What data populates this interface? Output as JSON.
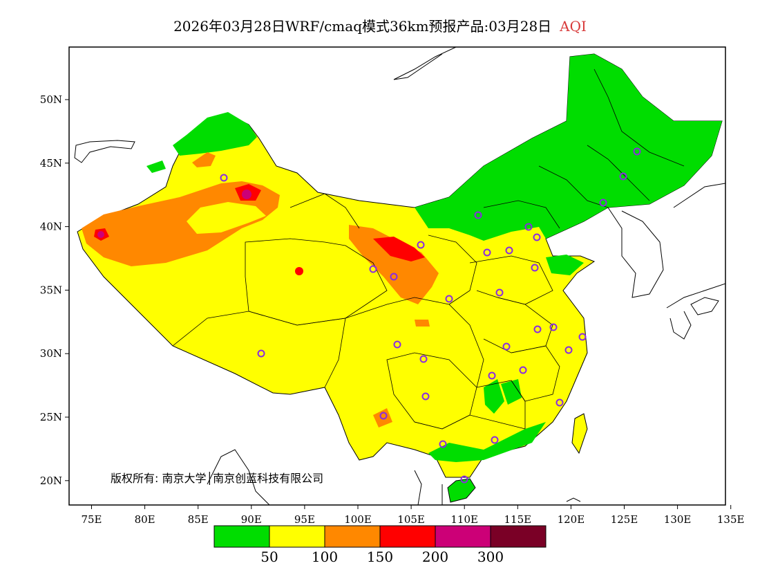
{
  "title": {
    "main": "2026年03月28日WRF/cmaq模式36km预报产品:03月28日",
    "variable": "AQI"
  },
  "axes": {
    "x_ticks": [
      "75E",
      "80E",
      "85E",
      "90E",
      "95E",
      "100E",
      "105E",
      "110E",
      "115E",
      "120E",
      "125E",
      "130E",
      "135E"
    ],
    "y_ticks": [
      "50N",
      "45N",
      "40N",
      "35N",
      "30N",
      "25N",
      "20N"
    ]
  },
  "legend": {
    "colors": [
      "#00dd00",
      "#ffff00",
      "#ff8800",
      "#ff0000",
      "#cc0077",
      "#7a0026"
    ],
    "labels": [
      "50",
      "100",
      "150",
      "200",
      "300"
    ]
  },
  "copyright": "版权所有: 南京大学│南京创蓝科技有限公司",
  "colors": {
    "frame": "#000000",
    "background": "#ffffff",
    "station_marker": "#8a2be2"
  }
}
